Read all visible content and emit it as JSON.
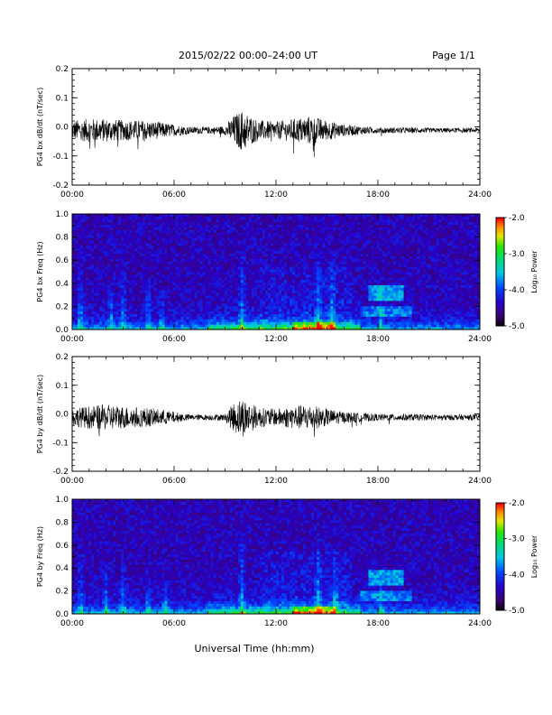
{
  "header": {
    "title": "2015/02/22  00:00–24:00 UT",
    "page": "Page 1/1"
  },
  "xlabel": "Universal Time (hh:mm)",
  "chart_data": [
    {
      "type": "line",
      "ylabel": "PG4 bx dB/dt (nT/sec)",
      "x_ticks": [
        "00:00",
        "06:00",
        "12:00",
        "18:00",
        "24:00"
      ],
      "xlim": [
        0,
        24
      ],
      "y_ticks": [
        "-0.2",
        "-0.1",
        "0.0",
        "0.1",
        "0.2"
      ],
      "ylim": [
        -0.2,
        0.2
      ],
      "envelope": {
        "x": [
          0,
          1,
          2,
          3,
          4,
          5,
          6,
          7,
          8,
          9,
          9.5,
          10,
          10.5,
          11,
          12,
          13,
          14,
          15,
          16,
          17,
          18,
          19,
          20,
          21,
          22,
          23,
          24
        ],
        "amplitude": [
          0.035,
          0.04,
          0.04,
          0.035,
          0.035,
          0.03,
          0.02,
          0.012,
          0.012,
          0.015,
          0.05,
          0.07,
          0.05,
          0.035,
          0.03,
          0.04,
          0.05,
          0.035,
          0.02,
          0.015,
          0.01,
          0.01,
          0.01,
          0.008,
          0.008,
          0.008,
          0.008
        ]
      }
    },
    {
      "type": "heatmap",
      "ylabel": "PG4 bx Freq (Hz)",
      "x_ticks": [
        "00:00",
        "06:00",
        "12:00",
        "18:00",
        "24:00"
      ],
      "xlim": [
        0,
        24
      ],
      "y_ticks": [
        "0.0",
        "0.2",
        "0.4",
        "0.6",
        "0.8",
        "1.0"
      ],
      "ylim": [
        0,
        1
      ],
      "colorbar": {
        "label": "Log₁₀ Power",
        "ticks": [
          "-2.0",
          "-3.0",
          "-4.0",
          "-5.0"
        ],
        "range": [
          -5.0,
          -2.0
        ]
      },
      "bursts": [
        {
          "t": 0.5,
          "f_max": 0.7
        },
        {
          "t": 2.3,
          "f_max": 0.5
        },
        {
          "t": 3.0,
          "f_max": 0.6
        },
        {
          "t": 4.5,
          "f_max": 0.5
        },
        {
          "t": 5.3,
          "f_max": 0.4
        },
        {
          "t": 10.0,
          "f_max": 0.9
        },
        {
          "t": 14.5,
          "f_max": 0.8
        },
        {
          "t": 15.3,
          "f_max": 0.7
        },
        {
          "t": 18.2,
          "f_max": 0.4
        }
      ]
    },
    {
      "type": "line",
      "ylabel": "PG4 by dB/dt (nT/sec)",
      "x_ticks": [
        "00:00",
        "06:00",
        "12:00",
        "18:00",
        "24:00"
      ],
      "xlim": [
        0,
        24
      ],
      "y_ticks": [
        "-0.2",
        "-0.1",
        "0.0",
        "0.1",
        "0.2"
      ],
      "ylim": [
        -0.2,
        0.2
      ],
      "envelope": {
        "x": [
          0,
          1,
          2,
          3,
          4,
          5,
          6,
          7,
          8,
          9,
          9.5,
          10,
          10.5,
          11,
          12,
          13,
          14,
          15,
          16,
          17,
          18,
          19,
          20,
          21,
          22,
          23,
          24
        ],
        "amplitude": [
          0.03,
          0.04,
          0.045,
          0.04,
          0.035,
          0.03,
          0.02,
          0.01,
          0.01,
          0.012,
          0.05,
          0.07,
          0.05,
          0.035,
          0.03,
          0.04,
          0.045,
          0.03,
          0.02,
          0.015,
          0.012,
          0.012,
          0.012,
          0.01,
          0.01,
          0.01,
          0.01
        ]
      }
    },
    {
      "type": "heatmap",
      "ylabel": "PG4 by Freq (Hz)",
      "x_ticks": [
        "00:00",
        "06:00",
        "12:00",
        "18:00",
        "24:00"
      ],
      "xlim": [
        0,
        24
      ],
      "y_ticks": [
        "0.0",
        "0.2",
        "0.4",
        "0.6",
        "0.8",
        "1.0"
      ],
      "ylim": [
        0,
        1
      ],
      "colorbar": {
        "label": "Log₁₀ Power",
        "ticks": [
          "-2.0",
          "-3.0",
          "-4.0",
          "-5.0"
        ],
        "range": [
          -5.0,
          -2.0
        ]
      },
      "bursts": [
        {
          "t": 0.5,
          "f_max": 0.6
        },
        {
          "t": 2.0,
          "f_max": 0.5
        },
        {
          "t": 3.0,
          "f_max": 0.55
        },
        {
          "t": 4.5,
          "f_max": 0.5
        },
        {
          "t": 5.5,
          "f_max": 0.4
        },
        {
          "t": 10.0,
          "f_max": 0.9
        },
        {
          "t": 14.5,
          "f_max": 0.8
        },
        {
          "t": 15.5,
          "f_max": 0.6
        },
        {
          "t": 18.2,
          "f_max": 0.35
        }
      ]
    }
  ]
}
